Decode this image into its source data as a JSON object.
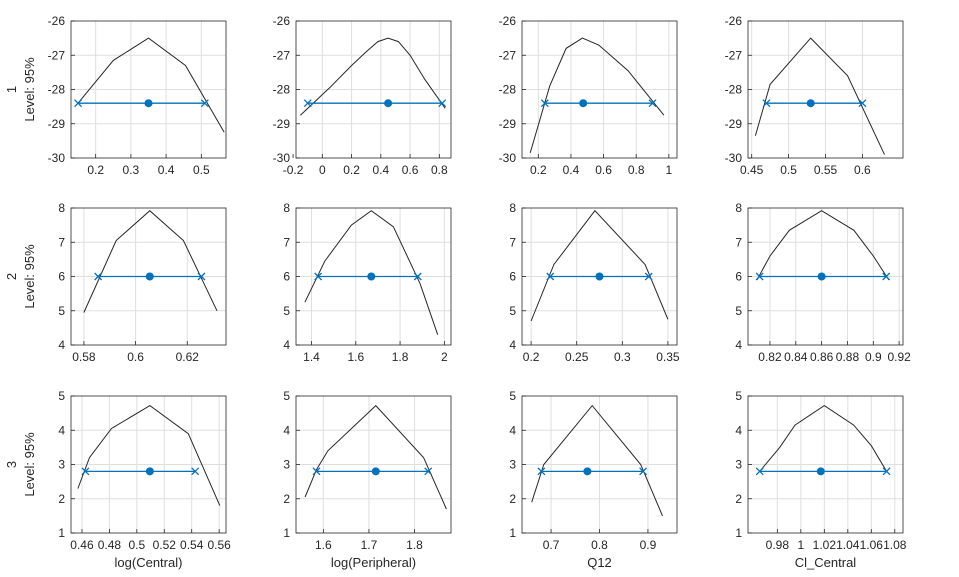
{
  "colors": {
    "profile": "#262626",
    "interval": "#0072BD",
    "grid": "#dfdfdf",
    "axis": "#262626",
    "background": "#ffffff"
  },
  "chart_data": [
    {
      "type": "line",
      "row": "1",
      "level_label": "Level: 95%",
      "xlabel": "",
      "xlim": [
        0.13,
        0.57
      ],
      "ylim": [
        -30,
        -26
      ],
      "xticks": [
        0.2,
        0.3,
        0.4,
        0.5
      ],
      "xtick_labels": [
        "0.2",
        "0.3",
        "0.4",
        "0.5"
      ],
      "yticks": [
        -30,
        -29,
        -28,
        -27,
        -26
      ],
      "ytick_labels": [
        "-30",
        "-29",
        "-28",
        "-27",
        "-26"
      ],
      "profile": {
        "x": [
          0.15,
          0.25,
          0.35,
          0.455,
          0.565
        ],
        "y": [
          -28.4,
          -27.15,
          -26.5,
          -27.3,
          -29.25
        ]
      },
      "interval": {
        "lower": 0.15,
        "upper": 0.51,
        "estimate": 0.35,
        "y": -28.4
      }
    },
    {
      "type": "line",
      "row": "1",
      "level_label": "",
      "xlabel": "",
      "xlim": [
        -0.18,
        0.88
      ],
      "ylim": [
        -30,
        -26
      ],
      "xticks": [
        -0.2,
        0,
        0.2,
        0.4,
        0.6,
        0.8
      ],
      "xtick_labels": [
        "-0.2",
        "0",
        "0.2",
        "0.4",
        "0.6",
        "0.8"
      ],
      "yticks": [
        -30,
        -29,
        -28,
        -27,
        -26
      ],
      "ytick_labels": [
        "-30",
        "-29",
        "-28",
        "-27",
        "-26"
      ],
      "profile": {
        "x": [
          -0.15,
          0.05,
          0.2,
          0.3,
          0.38,
          0.45,
          0.52,
          0.6,
          0.7,
          0.84
        ],
        "y": [
          -28.75,
          -27.95,
          -27.3,
          -26.9,
          -26.6,
          -26.5,
          -26.6,
          -27.0,
          -27.7,
          -28.55
        ]
      },
      "interval": {
        "lower": -0.1,
        "upper": 0.82,
        "estimate": 0.45,
        "y": -28.4
      }
    },
    {
      "type": "line",
      "row": "1",
      "level_label": "",
      "xlabel": "",
      "xlim": [
        0.1,
        1.05
      ],
      "ylim": [
        -30,
        -26
      ],
      "xticks": [
        0.2,
        0.4,
        0.6,
        0.8,
        1
      ],
      "xtick_labels": [
        "0.2",
        "0.4",
        "0.6",
        "0.8",
        "1"
      ],
      "yticks": [
        -30,
        -29,
        -28,
        -27,
        -26
      ],
      "ytick_labels": [
        "-30",
        "-29",
        "-28",
        "-27",
        "-26"
      ],
      "profile": {
        "x": [
          0.15,
          0.27,
          0.37,
          0.47,
          0.57,
          0.75,
          0.97
        ],
        "y": [
          -29.85,
          -27.9,
          -26.8,
          -26.5,
          -26.7,
          -27.45,
          -28.75
        ]
      },
      "interval": {
        "lower": 0.24,
        "upper": 0.9,
        "estimate": 0.475,
        "y": -28.4
      }
    },
    {
      "type": "line",
      "row": "1",
      "level_label": "",
      "xlabel": "",
      "xlim": [
        0.445,
        0.655
      ],
      "ylim": [
        -30,
        -26
      ],
      "xticks": [
        0.45,
        0.5,
        0.55,
        0.6
      ],
      "xtick_labels": [
        "0.45",
        "0.5",
        "0.55",
        "0.6"
      ],
      "yticks": [
        -30,
        -29,
        -28,
        -27,
        -26
      ],
      "ytick_labels": [
        "-30",
        "-29",
        "-28",
        "-27",
        "-26"
      ],
      "profile": {
        "x": [
          0.455,
          0.475,
          0.53,
          0.58,
          0.63
        ],
        "y": [
          -29.35,
          -27.85,
          -26.5,
          -27.6,
          -29.9
        ]
      },
      "interval": {
        "lower": 0.47,
        "upper": 0.6,
        "estimate": 0.53,
        "y": -28.4
      }
    },
    {
      "type": "line",
      "row": "2",
      "level_label": "Level: 95%",
      "xlabel": "",
      "xlim": [
        0.575,
        0.635
      ],
      "ylim": [
        4,
        8
      ],
      "xticks": [
        0.58,
        0.6,
        0.62
      ],
      "xtick_labels": [
        "0.58",
        "0.6",
        "0.62"
      ],
      "yticks": [
        4,
        5,
        6,
        7,
        8
      ],
      "ytick_labels": [
        "4",
        "5",
        "6",
        "7",
        "8"
      ],
      "profile": {
        "x": [
          0.58,
          0.5925,
          0.6055,
          0.6185,
          0.6315
        ],
        "y": [
          4.95,
          7.05,
          7.92,
          7.05,
          5.0
        ]
      },
      "interval": {
        "lower": 0.5855,
        "upper": 0.6255,
        "estimate": 0.6055,
        "y": 6.0
      }
    },
    {
      "type": "line",
      "row": "2",
      "level_label": "",
      "xlabel": "",
      "xlim": [
        1.33,
        2.03
      ],
      "ylim": [
        4,
        8
      ],
      "xticks": [
        1.4,
        1.6,
        1.8,
        2
      ],
      "xtick_labels": [
        "1.4",
        "1.6",
        "1.8",
        "2"
      ],
      "yticks": [
        4,
        5,
        6,
        7,
        8
      ],
      "ytick_labels": [
        "4",
        "5",
        "6",
        "7",
        "8"
      ],
      "profile": {
        "x": [
          1.37,
          1.46,
          1.58,
          1.67,
          1.77,
          1.89,
          1.97
        ],
        "y": [
          5.25,
          6.45,
          7.5,
          7.92,
          7.45,
          5.8,
          4.3
        ]
      },
      "interval": {
        "lower": 1.43,
        "upper": 1.88,
        "estimate": 1.67,
        "y": 6.0
      }
    },
    {
      "type": "line",
      "row": "2",
      "level_label": "",
      "xlabel": "",
      "xlim": [
        0.19,
        0.36
      ],
      "ylim": [
        4,
        8
      ],
      "xticks": [
        0.2,
        0.25,
        0.3,
        0.35
      ],
      "xtick_labels": [
        "0.2",
        "0.25",
        "0.3",
        "0.35"
      ],
      "yticks": [
        4,
        5,
        6,
        7,
        8
      ],
      "ytick_labels": [
        "4",
        "5",
        "6",
        "7",
        "8"
      ],
      "profile": {
        "x": [
          0.2,
          0.225,
          0.27,
          0.325,
          0.35
        ],
        "y": [
          4.7,
          6.35,
          7.92,
          6.35,
          4.75
        ]
      },
      "interval": {
        "lower": 0.221,
        "upper": 0.329,
        "estimate": 0.275,
        "y": 6.0
      }
    },
    {
      "type": "line",
      "row": "2",
      "level_label": "",
      "xlabel": "",
      "xlim": [
        0.803,
        0.923
      ],
      "ylim": [
        4,
        8
      ],
      "xticks": [
        0.82,
        0.84,
        0.86,
        0.88,
        0.9,
        0.92
      ],
      "xtick_labels": [
        "0.82",
        "0.84",
        "0.86",
        "0.88",
        "0.9",
        "0.92"
      ],
      "yticks": [
        4,
        5,
        6,
        7,
        8
      ],
      "ytick_labels": [
        "4",
        "5",
        "6",
        "7",
        "8"
      ],
      "profile": {
        "x": [
          0.81,
          0.82,
          0.835,
          0.86,
          0.885,
          0.9,
          0.912
        ],
        "y": [
          5.9,
          6.6,
          7.35,
          7.92,
          7.35,
          6.6,
          5.9
        ]
      },
      "interval": {
        "lower": 0.812,
        "upper": 0.91,
        "estimate": 0.86,
        "y": 6.0
      }
    },
    {
      "type": "line",
      "row": "3",
      "level_label": "Level: 95%",
      "xlabel": "log(Central)",
      "xlim": [
        0.452,
        0.565
      ],
      "ylim": [
        1,
        5
      ],
      "xticks": [
        0.46,
        0.48,
        0.5,
        0.52,
        0.54,
        0.56
      ],
      "xtick_labels": [
        "0.46",
        "0.48",
        "0.5",
        "0.52",
        "0.54",
        "0.56"
      ],
      "yticks": [
        1,
        2,
        3,
        4,
        5
      ],
      "ytick_labels": [
        "1",
        "2",
        "3",
        "4",
        "5"
      ],
      "profile": {
        "x": [
          0.457,
          0.4655,
          0.4815,
          0.5095,
          0.5375,
          0.5605
        ],
        "y": [
          2.3,
          3.2,
          4.05,
          4.72,
          3.9,
          1.8
        ]
      },
      "interval": {
        "lower": 0.4625,
        "upper": 0.5425,
        "estimate": 0.5095,
        "y": 2.8
      }
    },
    {
      "type": "line",
      "row": "3",
      "level_label": "",
      "xlabel": "log(Peripheral)",
      "xlim": [
        1.54,
        1.88
      ],
      "ylim": [
        1,
        5
      ],
      "xticks": [
        1.6,
        1.7,
        1.8
      ],
      "xtick_labels": [
        "1.6",
        "1.7",
        "1.8"
      ],
      "yticks": [
        1,
        2,
        3,
        4,
        5
      ],
      "ytick_labels": [
        "1",
        "2",
        "3",
        "4",
        "5"
      ],
      "profile": {
        "x": [
          1.56,
          1.585,
          1.61,
          1.715,
          1.82,
          1.87
        ],
        "y": [
          2.05,
          2.85,
          3.4,
          4.72,
          3.2,
          1.7
        ]
      },
      "interval": {
        "lower": 1.585,
        "upper": 1.83,
        "estimate": 1.715,
        "y": 2.8
      }
    },
    {
      "type": "line",
      "row": "3",
      "level_label": "",
      "xlabel": "Q12",
      "xlim": [
        0.64,
        0.96
      ],
      "ylim": [
        1,
        5
      ],
      "xticks": [
        0.7,
        0.8,
        0.9
      ],
      "xtick_labels": [
        "0.7",
        "0.8",
        "0.9"
      ],
      "yticks": [
        1,
        2,
        3,
        4,
        5
      ],
      "ytick_labels": [
        "1",
        "2",
        "3",
        "4",
        "5"
      ],
      "profile": {
        "x": [
          0.66,
          0.685,
          0.785,
          0.885,
          0.93
        ],
        "y": [
          1.9,
          3.0,
          4.72,
          3.0,
          1.5
        ]
      },
      "interval": {
        "lower": 0.68,
        "upper": 0.89,
        "estimate": 0.775,
        "y": 2.8
      }
    },
    {
      "type": "line",
      "row": "3",
      "level_label": "",
      "xlabel": "Cl_Central",
      "xlim": [
        0.955,
        1.087
      ],
      "ylim": [
        1,
        5
      ],
      "xticks": [
        0.98,
        1,
        1.02,
        1.04,
        1.06,
        1.08
      ],
      "xtick_labels": [
        "0.98",
        "1",
        "1.02",
        "1.04",
        "1.06",
        "1.08"
      ],
      "yticks": [
        1,
        2,
        3,
        4,
        5
      ],
      "ytick_labels": [
        "1",
        "2",
        "3",
        "4",
        "5"
      ],
      "profile": {
        "x": [
          0.965,
          0.982,
          0.995,
          1.02,
          1.045,
          1.06,
          1.073
        ],
        "y": [
          2.8,
          3.5,
          4.15,
          4.72,
          4.15,
          3.55,
          2.8
        ]
      },
      "interval": {
        "lower": 0.965,
        "upper": 1.073,
        "estimate": 1.017,
        "y": 2.8
      }
    }
  ]
}
